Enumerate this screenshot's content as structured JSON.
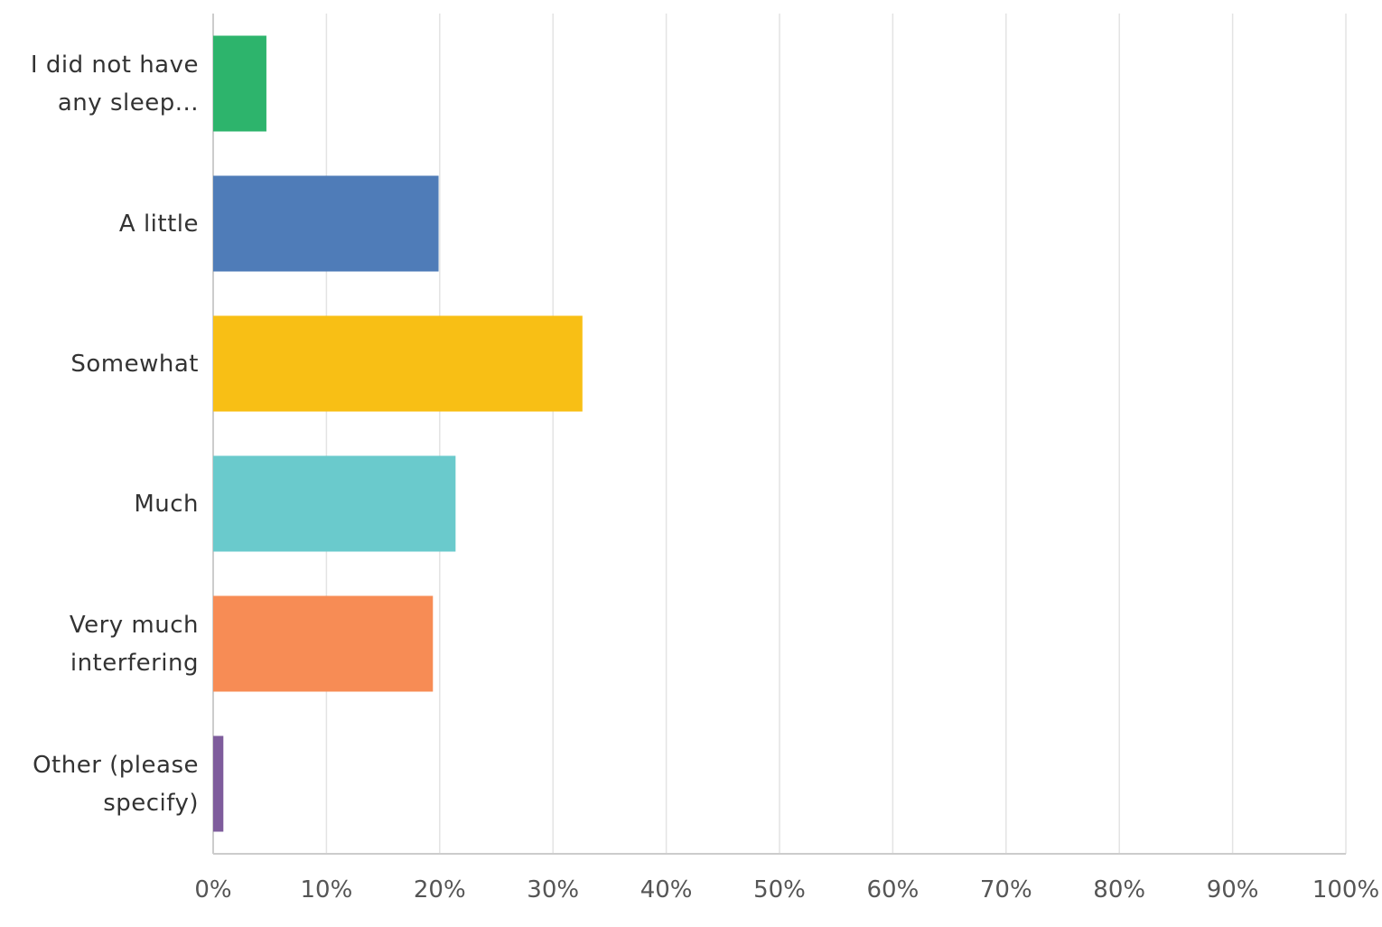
{
  "chart_data": {
    "type": "hbar",
    "categories": [
      "I did not have any sleep...",
      "A little",
      "Somewhat",
      "Much",
      "Very much interfering",
      "Other (please specify)"
    ],
    "values": [
      4.7,
      19.9,
      32.6,
      21.4,
      19.4,
      0.9
    ],
    "colors": [
      "#2db46c",
      "#4f7cb8",
      "#f8bf15",
      "#6acacc",
      "#f78c55",
      "#7e5c9c"
    ],
    "xlim": [
      0,
      100
    ],
    "xticks": [
      {
        "value": 0,
        "label": "0%"
      },
      {
        "value": 10,
        "label": "10%"
      },
      {
        "value": 20,
        "label": "20%"
      },
      {
        "value": 30,
        "label": "30%"
      },
      {
        "value": 40,
        "label": "40%"
      },
      {
        "value": 50,
        "label": "50%"
      },
      {
        "value": 60,
        "label": "60%"
      },
      {
        "value": 70,
        "label": "70%"
      },
      {
        "value": 80,
        "label": "80%"
      },
      {
        "value": 90,
        "label": "90%"
      },
      {
        "value": 100,
        "label": "100%"
      }
    ],
    "grid": true
  }
}
